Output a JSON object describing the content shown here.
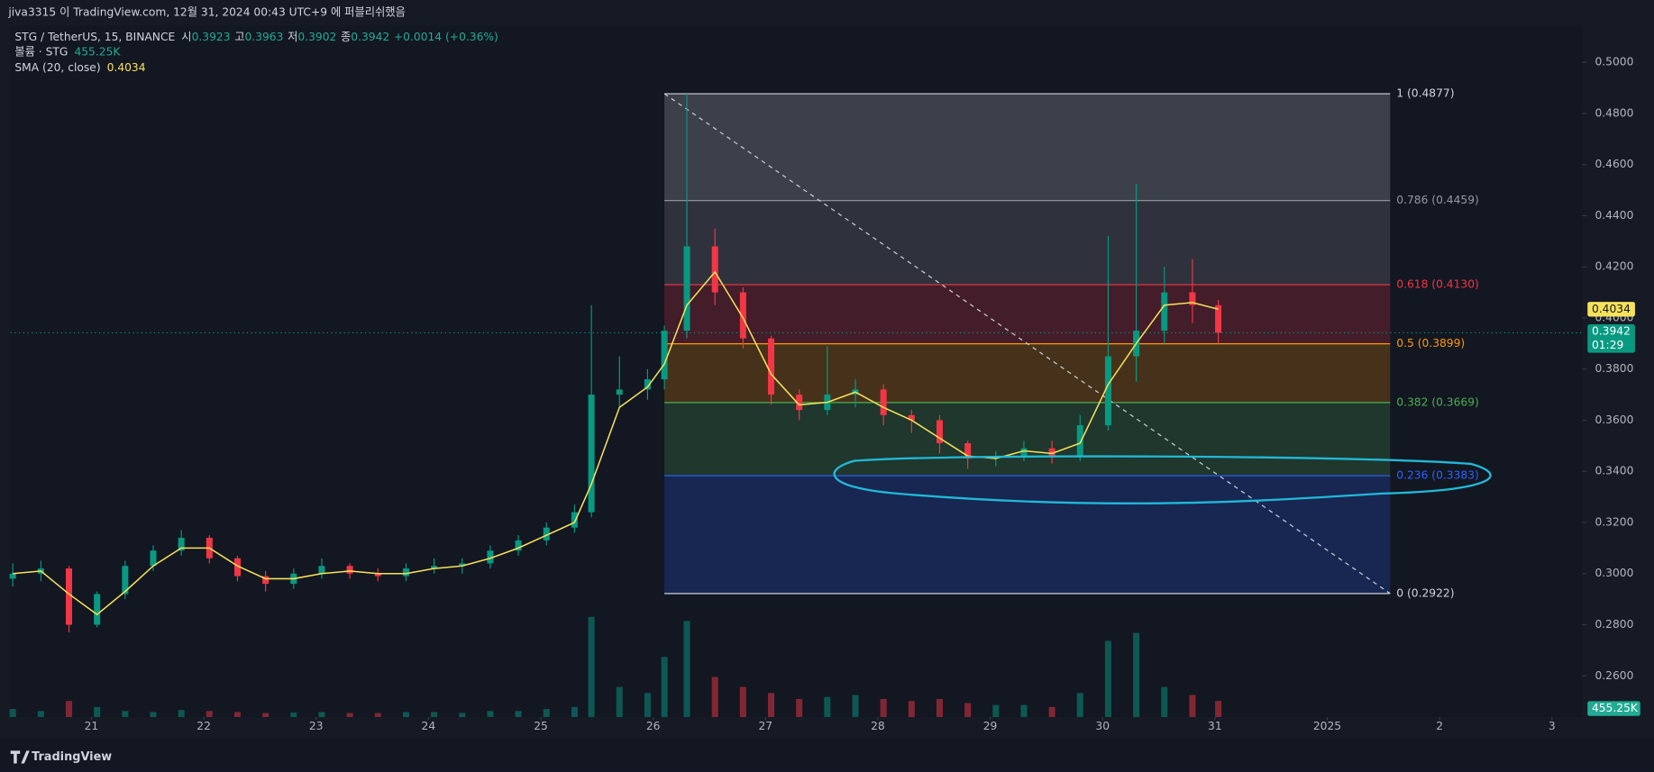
{
  "header": {
    "published": "jiva3315 이 TradingView.com, 12월 31, 2024 00:43 UTC+9 에 퍼블리쉬했음"
  },
  "chart_data": {
    "type": "candlestick",
    "symbol": "STG / TetherUS, 15, BINANCE",
    "ohlc_legend": [
      {
        "label": "시",
        "value": 0.3923
      },
      {
        "label": "고",
        "value": 0.3963
      },
      {
        "label": "저",
        "value": 0.3902
      },
      {
        "label": "종",
        "value": 0.3942
      }
    ],
    "change": "+0.0014 (+0.36%)",
    "volume_title": "볼륨 · STG",
    "volume_label": "455.25K",
    "sma_title": "SMA (20, close)",
    "countdown": "01:29",
    "colors": {
      "up": "#089981",
      "down": "#f23645",
      "sma": "#f7e15a",
      "price_line": "#089981"
    },
    "x": [
      20.3,
      20.55,
      20.8,
      21.05,
      21.3,
      21.55,
      21.8,
      22.05,
      22.3,
      22.55,
      22.8,
      23.05,
      23.3,
      23.55,
      23.8,
      24.05,
      24.3,
      24.55,
      24.8,
      25.05,
      25.3,
      25.45,
      25.7,
      25.95,
      26.1,
      26.3,
      26.55,
      26.8,
      27.05,
      27.3,
      27.55,
      27.8,
      28.05,
      28.3,
      28.55,
      28.8,
      29.05,
      29.3,
      29.55,
      29.8,
      30.05,
      30.3,
      30.55,
      30.8,
      31.03
    ],
    "open": [
      0.298,
      0.3,
      0.302,
      0.28,
      0.292,
      0.303,
      0.309,
      0.314,
      0.306,
      0.299,
      0.296,
      0.3,
      0.303,
      0.3,
      0.299,
      0.302,
      0.303,
      0.304,
      0.309,
      0.313,
      0.318,
      0.324,
      0.37,
      0.372,
      0.376,
      0.395,
      0.428,
      0.41,
      0.392,
      0.37,
      0.364,
      0.37,
      0.372,
      0.362,
      0.36,
      0.351,
      0.345,
      0.346,
      0.349,
      0.346,
      0.358,
      0.385,
      0.395,
      0.41,
      0.405
    ],
    "high": [
      0.304,
      0.305,
      0.303,
      0.293,
      0.305,
      0.311,
      0.317,
      0.315,
      0.307,
      0.301,
      0.302,
      0.306,
      0.304,
      0.302,
      0.304,
      0.306,
      0.306,
      0.311,
      0.315,
      0.32,
      0.327,
      0.405,
      0.385,
      0.38,
      0.397,
      0.4877,
      0.435,
      0.412,
      0.393,
      0.372,
      0.389,
      0.376,
      0.374,
      0.364,
      0.362,
      0.352,
      0.348,
      0.352,
      0.352,
      0.362,
      0.432,
      0.4525,
      0.42,
      0.423,
      0.407
    ],
    "low": [
      0.295,
      0.297,
      0.277,
      0.279,
      0.29,
      0.301,
      0.307,
      0.304,
      0.297,
      0.293,
      0.294,
      0.298,
      0.298,
      0.297,
      0.297,
      0.3,
      0.3,
      0.302,
      0.307,
      0.311,
      0.316,
      0.322,
      0.365,
      0.368,
      0.372,
      0.392,
      0.405,
      0.388,
      0.366,
      0.36,
      0.362,
      0.365,
      0.358,
      0.355,
      0.347,
      0.341,
      0.342,
      0.344,
      0.343,
      0.344,
      0.356,
      0.375,
      0.39,
      0.398,
      0.39
    ],
    "close": [
      0.3,
      0.302,
      0.28,
      0.292,
      0.303,
      0.309,
      0.314,
      0.306,
      0.299,
      0.296,
      0.3,
      0.303,
      0.3,
      0.299,
      0.302,
      0.303,
      0.304,
      0.309,
      0.313,
      0.318,
      0.324,
      0.37,
      0.372,
      0.376,
      0.395,
      0.428,
      0.41,
      0.392,
      0.37,
      0.364,
      0.37,
      0.372,
      0.362,
      0.36,
      0.351,
      0.345,
      0.346,
      0.349,
      0.346,
      0.358,
      0.385,
      0.395,
      0.41,
      0.405,
      0.3942
    ],
    "volume": [
      40,
      30,
      80,
      50,
      30,
      25,
      35,
      30,
      25,
      20,
      22,
      25,
      20,
      20,
      25,
      25,
      20,
      30,
      30,
      40,
      50,
      500,
      150,
      120,
      300,
      480,
      200,
      150,
      120,
      90,
      100,
      110,
      90,
      80,
      90,
      70,
      60,
      60,
      50,
      120,
      380,
      420,
      150,
      110,
      80
    ],
    "sma": [
      0.3,
      0.301,
      0.292,
      0.284,
      0.293,
      0.303,
      0.31,
      0.31,
      0.303,
      0.298,
      0.298,
      0.3,
      0.301,
      0.3,
      0.3,
      0.302,
      0.303,
      0.306,
      0.31,
      0.315,
      0.32,
      0.335,
      0.365,
      0.373,
      0.382,
      0.405,
      0.418,
      0.4,
      0.378,
      0.366,
      0.367,
      0.371,
      0.365,
      0.36,
      0.353,
      0.346,
      0.345,
      0.348,
      0.347,
      0.351,
      0.374,
      0.39,
      0.405,
      0.406,
      0.4034
    ],
    "xlim": [
      20.28,
      34.27
    ],
    "xticks": [
      21,
      22,
      23,
      24,
      25,
      26,
      27,
      28,
      29,
      30,
      31,
      {
        "value": 32,
        "label": "2025"
      },
      {
        "value": 33,
        "label": "2"
      },
      {
        "value": 34,
        "label": "3"
      }
    ],
    "ylim": [
      0.2439,
      0.5243
    ],
    "yticks": [
      {
        "value": 0.5,
        "label": "0.5000"
      },
      {
        "value": 0.48,
        "label": "0.4800"
      },
      {
        "value": 0.46,
        "label": "0.4600"
      },
      {
        "value": 0.44,
        "label": "0.4400"
      },
      {
        "value": 0.42,
        "label": "0.4200"
      },
      {
        "value": 0.4,
        "label": "0.4000"
      },
      {
        "value": 0.38,
        "label": "0.3800"
      },
      {
        "value": 0.36,
        "label": "0.3600"
      },
      {
        "value": 0.34,
        "label": "0.3400"
      },
      {
        "value": 0.32,
        "label": "0.3200"
      },
      {
        "value": 0.3,
        "label": "0.3000"
      },
      {
        "value": 0.28,
        "label": "0.2800"
      },
      {
        "value": 0.26,
        "label": "0.2600"
      }
    ],
    "fib": {
      "x": [
        26.1,
        32.56
      ],
      "levels": [
        {
          "value": 0.4877,
          "label": "1 (0.4877)",
          "color": "#d1d4dc"
        },
        {
          "value": 0.4459,
          "label": "0.786 (0.4459)",
          "color": "#9598a1"
        },
        {
          "value": 0.413,
          "label": "0.618 (0.4130)",
          "color": "#f23645"
        },
        {
          "value": 0.3899,
          "label": "0.5 (0.3899)",
          "color": "#ff9800"
        },
        {
          "value": 0.3669,
          "label": "0.382 (0.3669)",
          "color": "#4caf50"
        },
        {
          "value": 0.3383,
          "label": "0.236 (0.3383)",
          "color": "#2962ff"
        },
        {
          "value": 0.2922,
          "label": "0 (0.2922)",
          "color": "#d1d4dc"
        }
      ]
    }
  },
  "footer": {
    "brand": "TradingView"
  }
}
